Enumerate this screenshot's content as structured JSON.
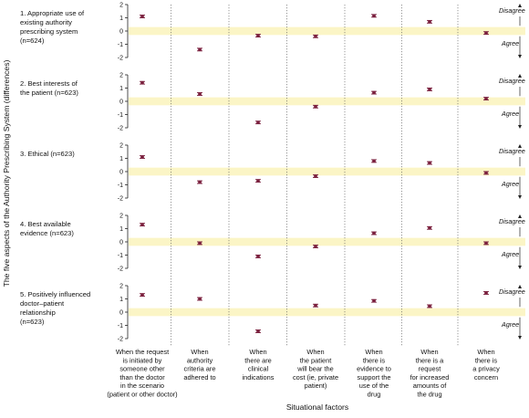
{
  "chart_data": {
    "type": "scatter",
    "ylabel": "The five aspects of the Authority Prescribing System (differences)",
    "xlabel": "Situational factors",
    "ylim": [
      -2,
      2
    ],
    "yticks": [
      "2",
      "1",
      "0",
      "-1",
      "-2"
    ],
    "reference_band": [
      -0.3,
      0.3
    ],
    "side_labels": {
      "upper": "Disagree",
      "lower": "Agree"
    },
    "categories": [
      [
        "When the request",
        "is initiated by",
        "someone other",
        "than the doctor",
        "in the scenario",
        "(patient or other doctor)"
      ],
      [
        "When",
        "authority",
        "criteria are",
        "adhered to"
      ],
      [
        "When",
        "there are",
        "clinical",
        "indications"
      ],
      [
        "When",
        "the patient",
        "will bear the",
        "cost (ie, private",
        "patient)"
      ],
      [
        "When",
        "there is",
        "evidence to",
        "support the",
        "use of the",
        "drug"
      ],
      [
        "When",
        "there is a",
        "request",
        "for increased",
        "amounts of",
        "the drug"
      ],
      [
        "When",
        "there is",
        "a privacy",
        "concern"
      ]
    ],
    "panels": [
      {
        "label": [
          "1. Appropriate use of",
          "existing authority",
          "prescribing system",
          "(n=624)"
        ],
        "values": [
          1.1,
          -1.4,
          -0.35,
          -0.4,
          1.15,
          0.7,
          -0.15
        ]
      },
      {
        "label": [
          "2. Best interests of",
          "the patient (n=623)"
        ],
        "values": [
          1.4,
          0.55,
          -1.6,
          -0.4,
          0.65,
          0.9,
          0.2
        ]
      },
      {
        "label": [
          "3. Ethical (n=623)"
        ],
        "values": [
          1.1,
          -0.8,
          -0.7,
          -0.35,
          0.8,
          0.65,
          -0.1
        ]
      },
      {
        "label": [
          "4. Best available",
          "evidence (n=623)"
        ],
        "values": [
          1.3,
          -0.1,
          -1.1,
          -0.35,
          0.65,
          1.05,
          -0.1
        ]
      },
      {
        "label": [
          "5. Positively influenced",
          "doctor–patient",
          "relationship",
          "(n=623)"
        ],
        "values": [
          1.3,
          1.0,
          -1.45,
          0.5,
          0.85,
          0.45,
          1.45
        ]
      }
    ],
    "ci_half_width": 0.1,
    "colors": {
      "band": "#fbf5c6",
      "marker": "#7a1f3d",
      "axis": "#222222",
      "divider": "#555555"
    }
  }
}
